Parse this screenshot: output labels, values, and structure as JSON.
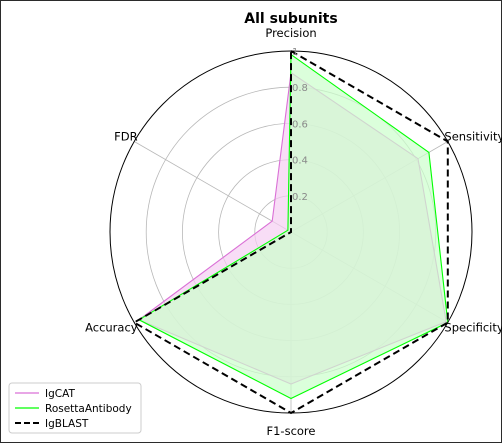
{
  "chart_data": {
    "type": "radar",
    "title": "All subunits",
    "axes": [
      "Precision",
      "Sensitivity",
      "Specificity",
      "F1-score",
      "Accuracy",
      "FDR"
    ],
    "radial_ticks": [
      "0.2",
      "0.4",
      "0.6",
      "0.8",
      "1"
    ],
    "rlim": [
      0,
      1
    ],
    "grid": true,
    "legend_position": "lower-left",
    "series": [
      {
        "name": "IgCAT",
        "values": [
          0.88,
          0.81,
          0.99,
          0.84,
          0.97,
          0.12
        ],
        "color": "#da70d6",
        "fill": "#f5cff2",
        "style": "solid"
      },
      {
        "name": "RosettaAntibody",
        "values": [
          0.98,
          0.88,
          1.0,
          0.92,
          0.97,
          0.02
        ],
        "color": "#00ff00",
        "fill": "#ccffcc",
        "style": "solid"
      },
      {
        "name": "IgBLAST",
        "values": [
          1.0,
          1.0,
          1.0,
          1.0,
          1.0,
          0.0
        ],
        "color": "#000000",
        "fill": "none",
        "style": "dashed"
      }
    ]
  }
}
